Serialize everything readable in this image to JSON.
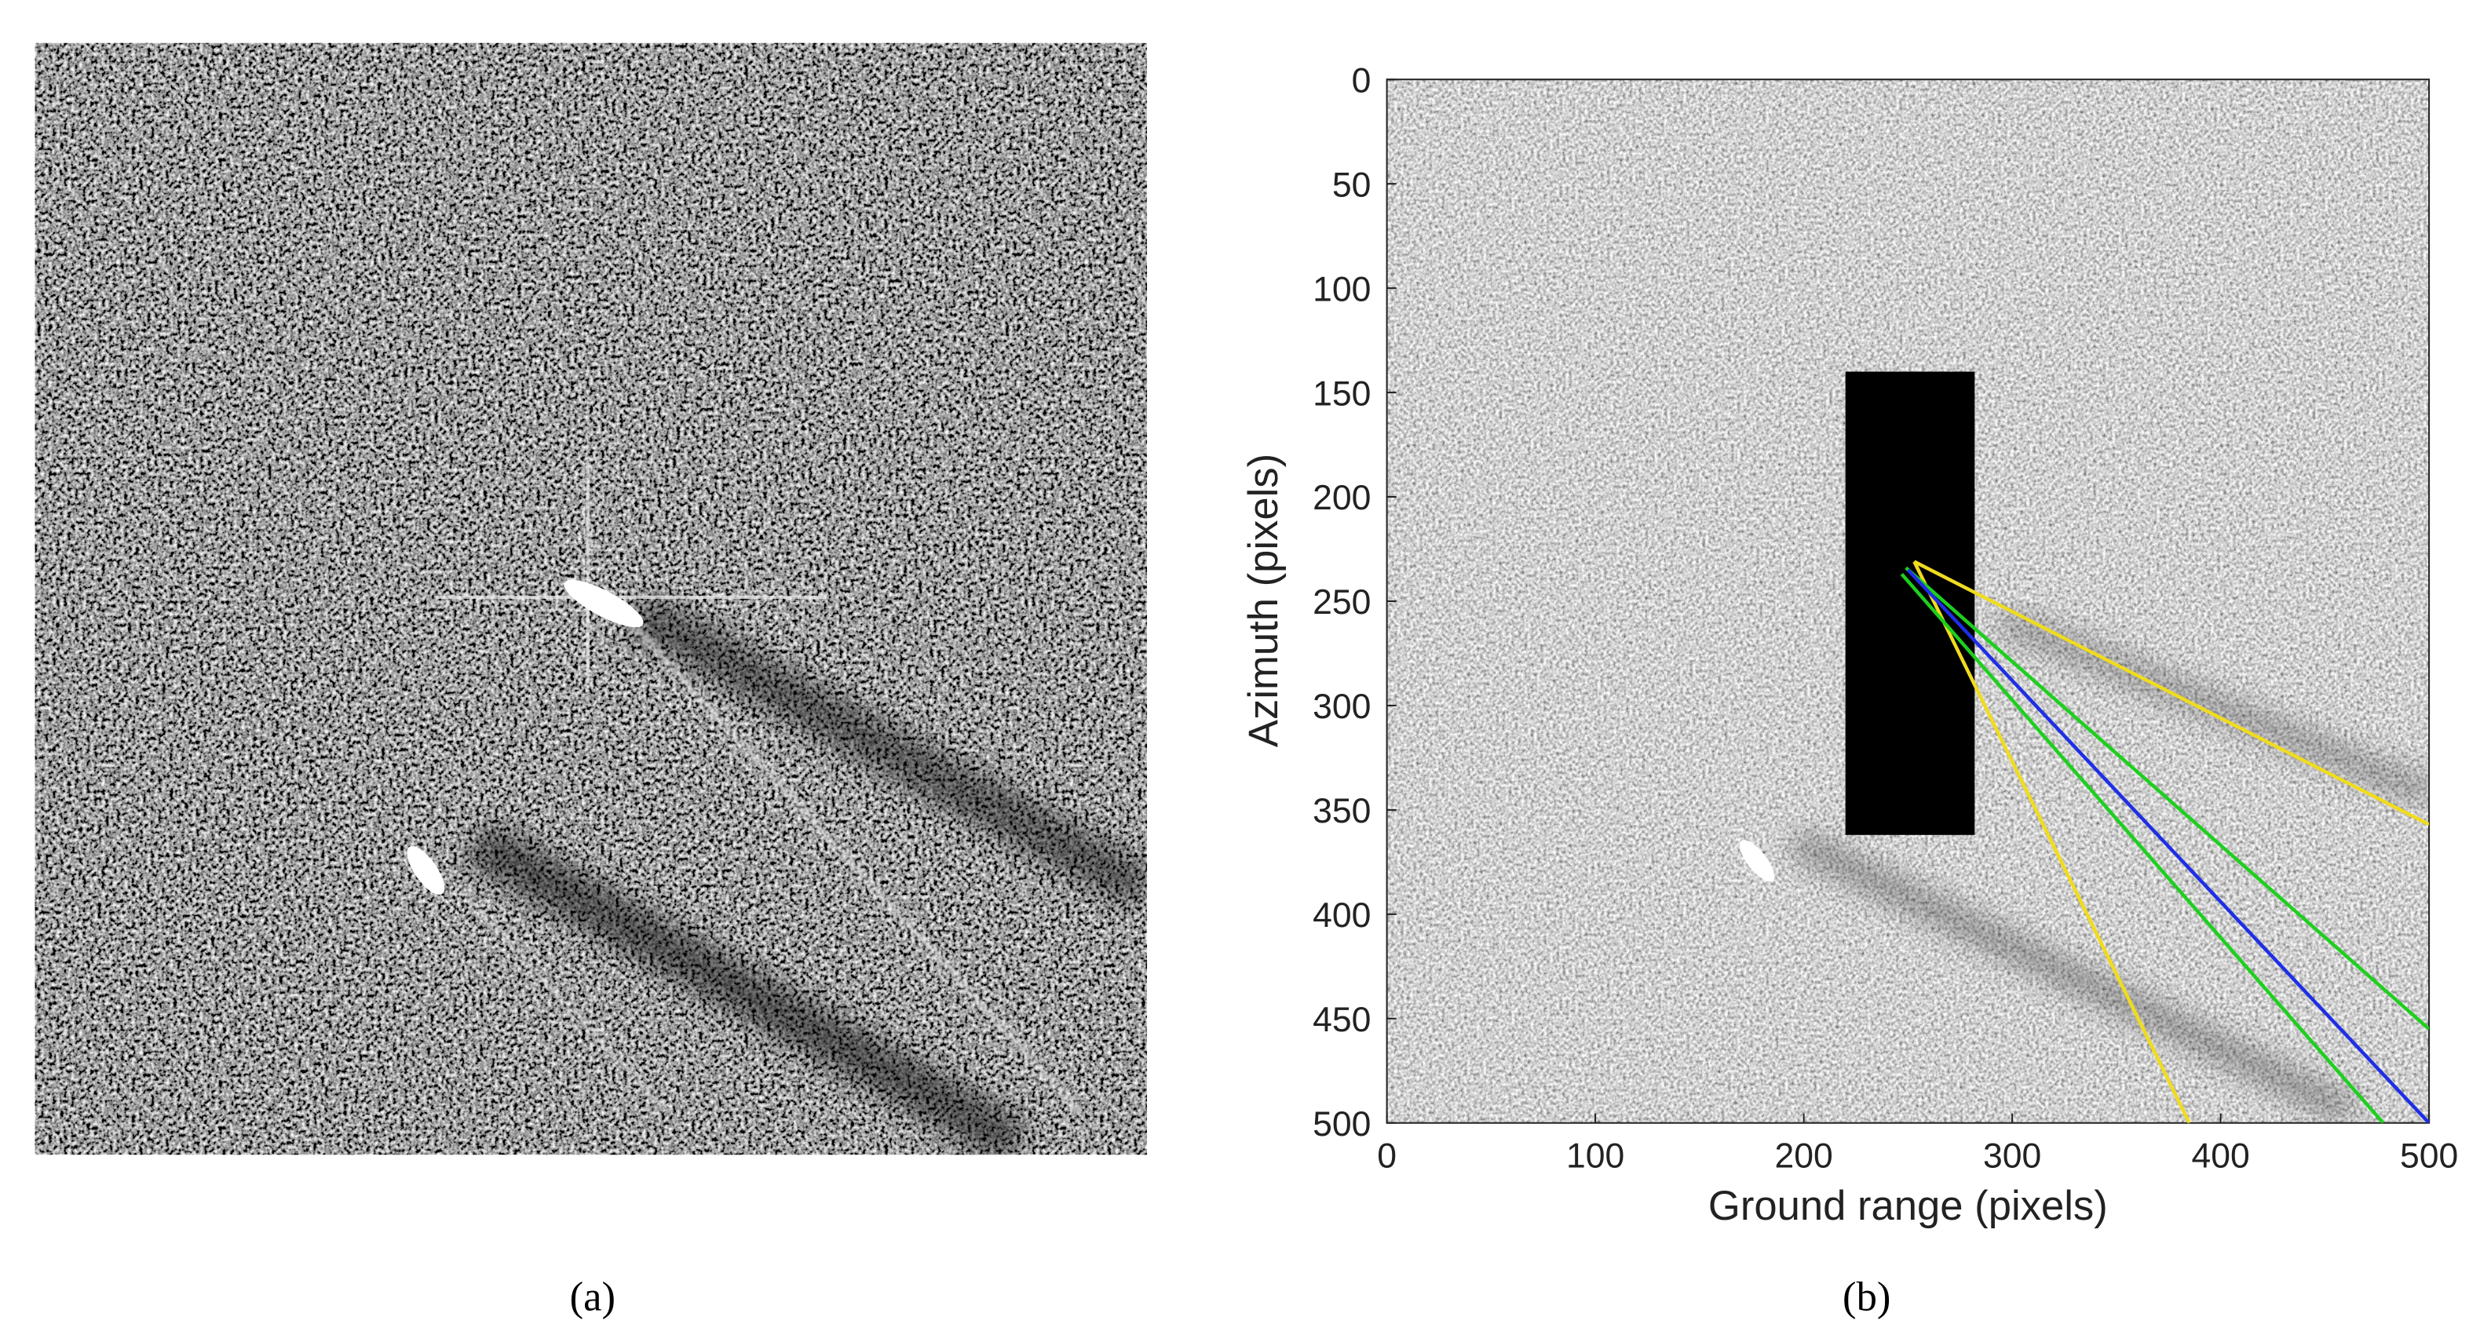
{
  "panel_a": {
    "caption": "(a)"
  },
  "chart_data": {
    "type": "image",
    "caption": "(b)",
    "xlabel": "Ground range (pixels)",
    "ylabel": "Azimuth (pixels)",
    "xlim": [
      0,
      500
    ],
    "ylim": [
      0,
      500
    ],
    "y_reversed": true,
    "xticks": [
      0,
      100,
      200,
      300,
      400,
      500
    ],
    "yticks": [
      0,
      50,
      100,
      150,
      200,
      250,
      300,
      350,
      400,
      450,
      500
    ],
    "box": {
      "color": "#000000",
      "x": [
        220,
        282
      ],
      "y": [
        140,
        362
      ]
    },
    "lines": [
      {
        "color": "#f0dc1e",
        "x": [
          253,
          500
        ],
        "y": [
          231,
          357
        ]
      },
      {
        "color": "#f0dc1e",
        "x": [
          253,
          385
        ],
        "y": [
          231,
          500
        ]
      },
      {
        "color": "#1ecf1e",
        "x": [
          249,
          500
        ],
        "y": [
          234,
          455
        ]
      },
      {
        "color": "#1ecf1e",
        "x": [
          247,
          478
        ],
        "y": [
          237,
          500
        ]
      },
      {
        "color": "#1e2ee6",
        "x": [
          250,
          500
        ],
        "y": [
          235,
          500
        ]
      }
    ]
  }
}
